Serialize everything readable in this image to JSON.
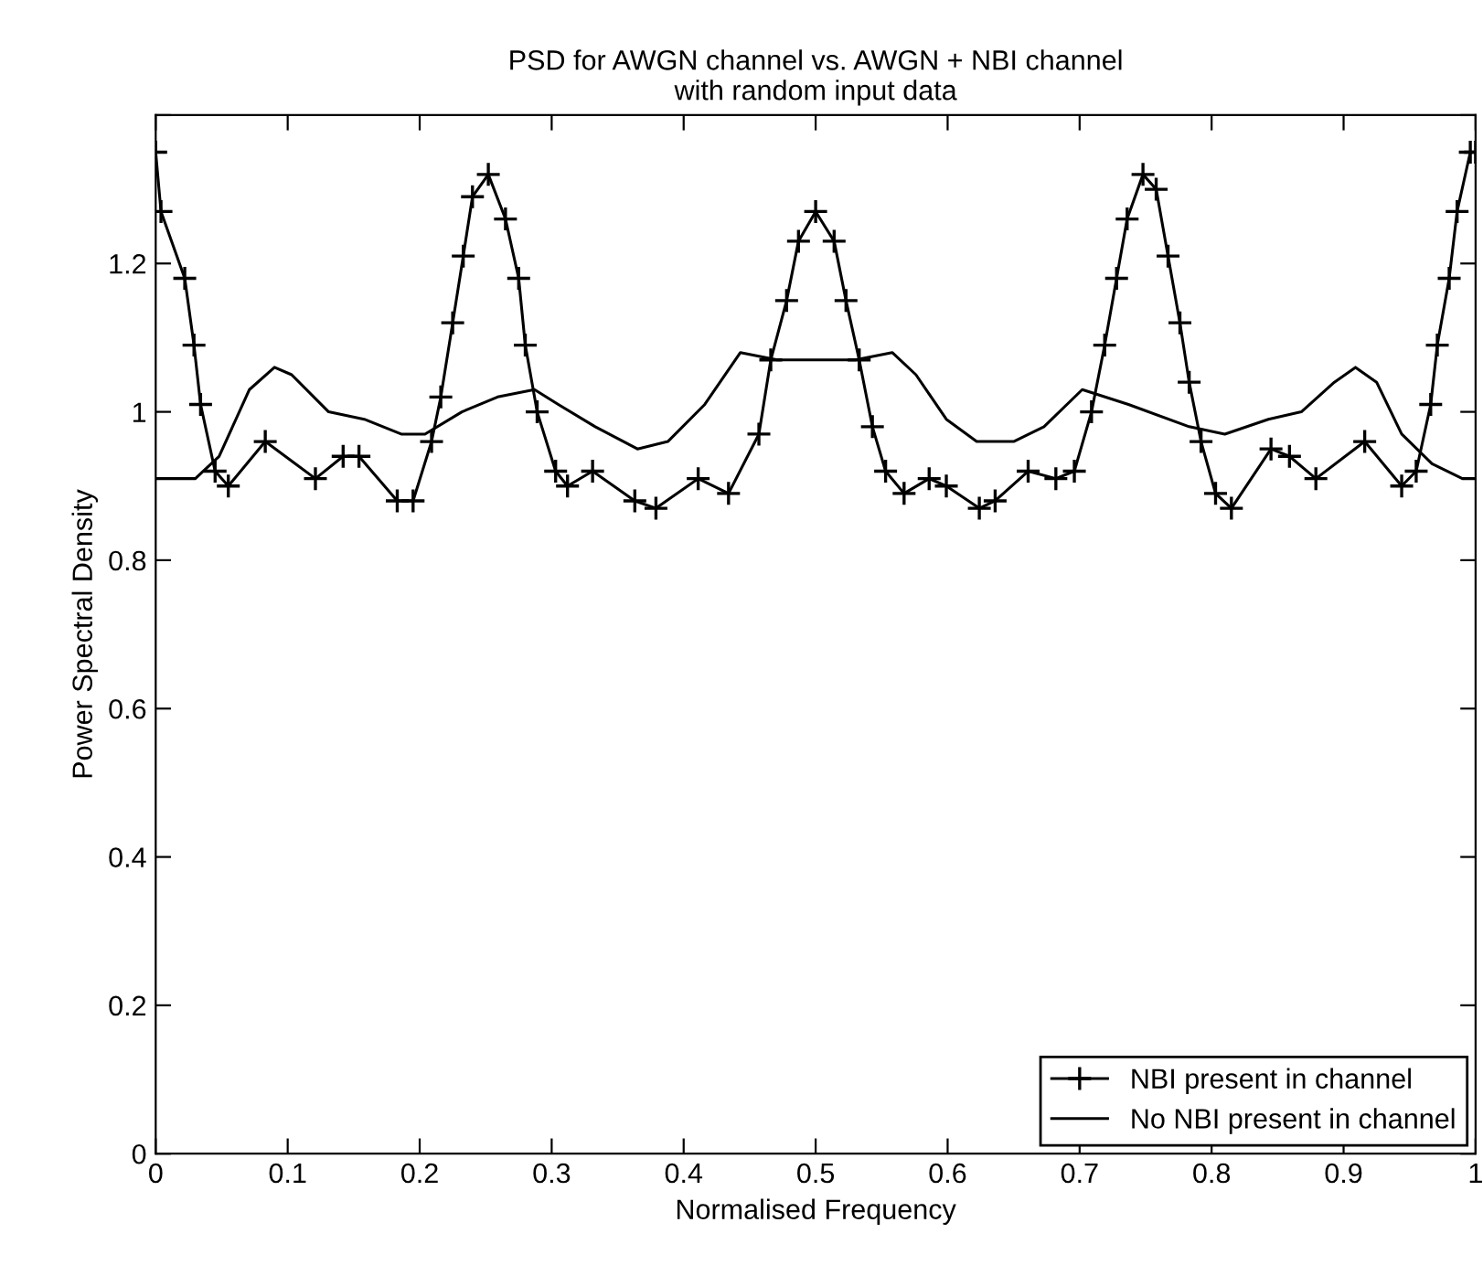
{
  "chart_data": {
    "type": "line",
    "title": "PSD for AWGN channel vs. AWGN + NBI channel\nwith random input data",
    "xlabel": "Normalised Frequency",
    "ylabel": "Power Spectral Density",
    "xlim": [
      0,
      1
    ],
    "xticks": [
      0,
      0.1,
      0.2,
      0.3,
      0.4,
      0.5,
      0.6,
      0.7,
      0.8,
      0.9,
      1
    ],
    "ylim": [
      0,
      1.4
    ],
    "yticks": [
      0,
      0.2,
      0.4,
      0.6,
      0.8,
      1,
      1.2,
      {
        "value": 1.4,
        "label": null
      }
    ],
    "grid": false,
    "legend": "bottom right",
    "line_style": "solid",
    "series": [
      {
        "name": "NBI present in channel",
        "color": "#000000",
        "marker": "cross",
        "x": [
          0,
          0.004,
          0.022,
          0.029,
          0.034,
          0.045,
          0.055,
          0.083,
          0.121,
          0.142,
          0.154,
          0.183,
          0.195,
          0.209,
          0.216,
          0.225,
          0.233,
          0.24,
          0.252,
          0.265,
          0.275,
          0.28,
          0.289,
          0.303,
          0.312,
          0.331,
          0.363,
          0.379,
          0.411,
          0.434,
          0.457,
          0.466,
          0.478,
          0.487,
          0.5,
          0.514,
          0.523,
          0.533,
          0.543,
          0.553,
          0.567,
          0.586,
          0.599,
          0.624,
          0.636,
          0.661,
          0.682,
          0.696,
          0.709,
          0.719,
          0.728,
          0.736,
          0.748,
          0.758,
          0.767,
          0.776,
          0.783,
          0.792,
          0.803,
          0.815,
          0.845,
          0.859,
          0.879,
          0.916,
          0.944,
          0.955,
          0.966,
          0.971,
          0.98,
          0.986,
          0.996,
          1
        ],
        "values": [
          1.35,
          1.27,
          1.18,
          1.09,
          1.01,
          0.92,
          0.9,
          0.96,
          0.91,
          0.94,
          0.94,
          0.88,
          0.88,
          0.96,
          1.02,
          1.12,
          1.21,
          1.29,
          1.32,
          1.26,
          1.18,
          1.09,
          1.0,
          0.92,
          0.9,
          0.92,
          0.88,
          0.87,
          0.91,
          0.89,
          0.97,
          1.07,
          1.15,
          1.23,
          1.27,
          1.23,
          1.15,
          1.07,
          0.98,
          0.92,
          0.89,
          0.91,
          0.9,
          0.87,
          0.88,
          0.92,
          0.91,
          0.92,
          1.0,
          1.09,
          1.18,
          1.26,
          1.32,
          1.3,
          1.21,
          1.12,
          1.04,
          0.96,
          0.89,
          0.87,
          0.95,
          0.94,
          0.91,
          0.96,
          0.9,
          0.92,
          1.01,
          1.09,
          1.18,
          1.27,
          1.35,
          1.35
        ]
      },
      {
        "name": "No NBI present in channel",
        "color": "#000000",
        "marker": "none",
        "x": [
          0,
          0.03,
          0.048,
          0.071,
          0.09,
          0.103,
          0.131,
          0.158,
          0.186,
          0.204,
          0.232,
          0.259,
          0.287,
          0.305,
          0.333,
          0.365,
          0.388,
          0.416,
          0.443,
          0.471,
          0.53,
          0.558,
          0.576,
          0.599,
          0.622,
          0.65,
          0.673,
          0.702,
          0.737,
          0.783,
          0.81,
          0.843,
          0.868,
          0.893,
          0.909,
          0.925,
          0.944,
          0.967,
          0.99,
          1
        ],
        "values": [
          0.91,
          0.91,
          0.94,
          1.03,
          1.06,
          1.05,
          1.0,
          0.99,
          0.97,
          0.97,
          1.0,
          1.02,
          1.03,
          1.01,
          0.98,
          0.95,
          0.96,
          1.01,
          1.08,
          1.07,
          1.07,
          1.08,
          1.05,
          0.99,
          0.96,
          0.96,
          0.98,
          1.03,
          1.01,
          0.98,
          0.97,
          0.99,
          1.0,
          1.04,
          1.06,
          1.04,
          0.97,
          0.93,
          0.91,
          0.91
        ]
      }
    ]
  }
}
